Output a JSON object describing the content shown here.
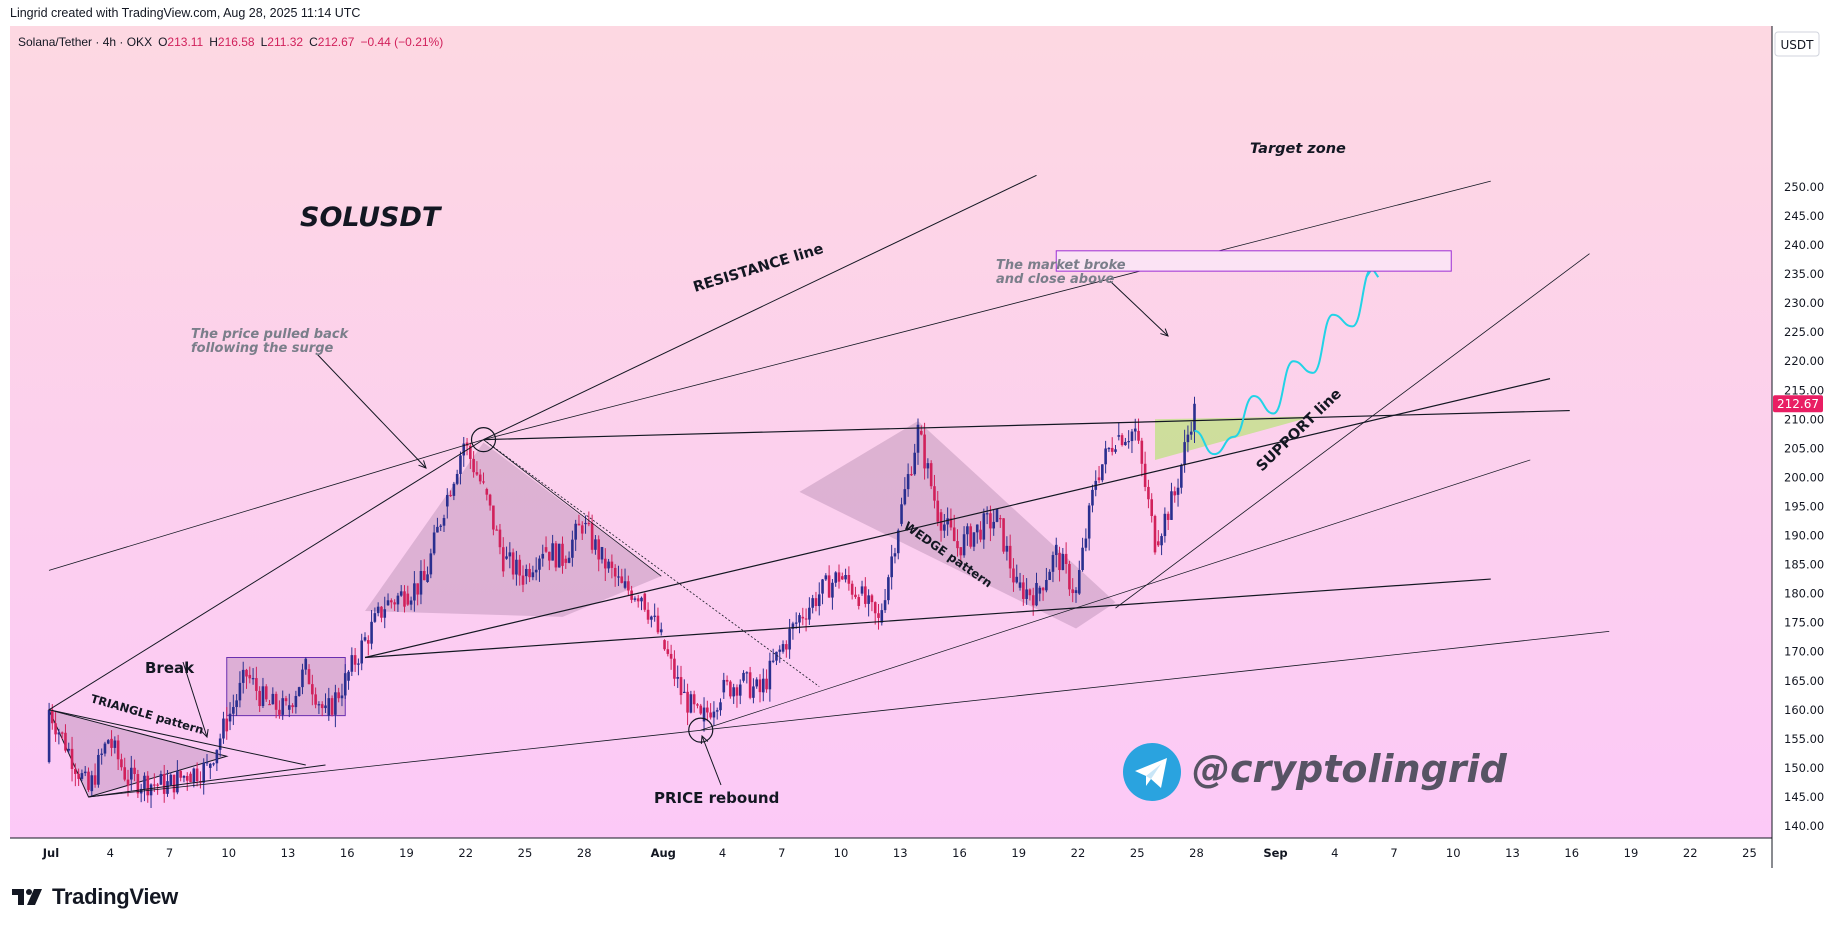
{
  "header": {
    "credit": "Lingrid created with TradingView.com, Aug 28, 2025 11:14 UTC"
  },
  "legend": {
    "symbol": "Solana/Tether · 4h · OKX",
    "open_label": "O",
    "open": "213.11",
    "high_label": "H",
    "high": "216.58",
    "low_label": "L",
    "low": "211.32",
    "close_label": "C",
    "close": "212.67",
    "change": "−0.44 (−0.21%)"
  },
  "currency_button": "USDT",
  "price_badge": "212.67",
  "watermark": {
    "handle": "@cryptolingrid",
    "icon": "telegram-icon"
  },
  "footer": {
    "brand": "TradingView",
    "icon": "tradingview-logo-icon"
  },
  "annotations": {
    "symbol_title": "SOLUSDT",
    "resistance": "RESISTANCE line",
    "support": "SUPPORT line",
    "target": "Target zone",
    "market_broke_1": "The market broke",
    "market_broke_2": "and close above",
    "pulled_back_1": "The price pulled back",
    "pulled_back_2": "following the surge",
    "break": "Break",
    "triangle": "TRIANGLE pattern",
    "wedge": "WEDGE pattern",
    "rebound": "PRICE rebound"
  },
  "colors": {
    "up": "#2a2f8f",
    "down": "#d1215b",
    "bg_top": "#fdd8e2",
    "bg_bottom": "#fcc9f7",
    "projection": "#22d3e6",
    "target_box": "#9b2fd6",
    "badge": "#e91e63"
  },
  "chart_data": {
    "type": "candlestick",
    "title": "SOLUSDT",
    "y_axis": {
      "min": 140,
      "max": 250,
      "ticks": [
        "140.00",
        "145.00",
        "150.00",
        "155.00",
        "160.00",
        "165.00",
        "170.00",
        "175.00",
        "180.00",
        "185.00",
        "190.00",
        "195.00",
        "200.00",
        "205.00",
        "210.00",
        "215.00",
        "220.00",
        "225.00",
        "230.00",
        "235.00",
        "240.00",
        "245.00",
        "250.00"
      ]
    },
    "x_axis": {
      "ticks": [
        "Jul",
        "4",
        "7",
        "10",
        "13",
        "16",
        "19",
        "22",
        "25",
        "28",
        "Aug",
        "4",
        "7",
        "10",
        "13",
        "16",
        "19",
        "22",
        "25",
        "28",
        "Sep",
        "4",
        "7",
        "10",
        "13",
        "16",
        "19",
        "22",
        "25"
      ]
    },
    "last_close": 212.67,
    "path_points": [
      [
        "Jul 1",
        151
      ],
      [
        "Jul 1",
        160
      ],
      [
        "Jul 3",
        146
      ],
      [
        "Jul 4",
        155
      ],
      [
        "Jul 5",
        148
      ],
      [
        "Jul 7",
        147
      ],
      [
        "Jul 8",
        149
      ],
      [
        "Jul 9",
        150
      ],
      [
        "Jul 10",
        158
      ],
      [
        "Jul 11",
        166
      ],
      [
        "Jul 12",
        161
      ],
      [
        "Jul 13",
        160
      ],
      [
        "Jul 14",
        167
      ],
      [
        "Jul 15",
        159
      ],
      [
        "Jul 16",
        165
      ],
      [
        "Jul 17",
        172
      ],
      [
        "Jul 18",
        178
      ],
      [
        "Jul 19",
        180
      ],
      [
        "Jul 20",
        182
      ],
      [
        "Jul 21",
        195
      ],
      [
        "Jul 22",
        206
      ],
      [
        "Jul 23",
        198
      ],
      [
        "Jul 24",
        186
      ],
      [
        "Jul 25",
        183
      ],
      [
        "Jul 26",
        188
      ],
      [
        "Jul 27",
        186
      ],
      [
        "Jul 28",
        192
      ],
      [
        "Jul 29",
        186
      ],
      [
        "Jul 30",
        181
      ],
      [
        "Jul 31",
        180
      ],
      [
        "Aug 1",
        172
      ],
      [
        "Aug 2",
        163
      ],
      [
        "Aug 3",
        158
      ],
      [
        "Aug 4",
        163
      ],
      [
        "Aug 5",
        165
      ],
      [
        "Aug 6",
        163
      ],
      [
        "Aug 7",
        170
      ],
      [
        "Aug 8",
        176
      ],
      [
        "Aug 9",
        180
      ],
      [
        "Aug 10",
        183
      ],
      [
        "Aug 11",
        180
      ],
      [
        "Aug 12",
        175
      ],
      [
        "Aug 13",
        192
      ],
      [
        "Aug 14",
        208
      ],
      [
        "Aug 15",
        194
      ],
      [
        "Aug 16",
        188
      ],
      [
        "Aug 17",
        191
      ],
      [
        "Aug 18",
        193
      ],
      [
        "Aug 19",
        181
      ],
      [
        "Aug 20",
        180
      ],
      [
        "Aug 21",
        187
      ],
      [
        "Aug 22",
        180
      ],
      [
        "Aug 23",
        200
      ],
      [
        "Aug 24",
        207
      ],
      [
        "Aug 25",
        208
      ],
      [
        "Aug 26",
        189
      ],
      [
        "Aug 27",
        197
      ],
      [
        "Aug 28",
        212.67
      ]
    ],
    "zones": {
      "target_zone": [
        235.5,
        239.0
      ]
    }
  }
}
